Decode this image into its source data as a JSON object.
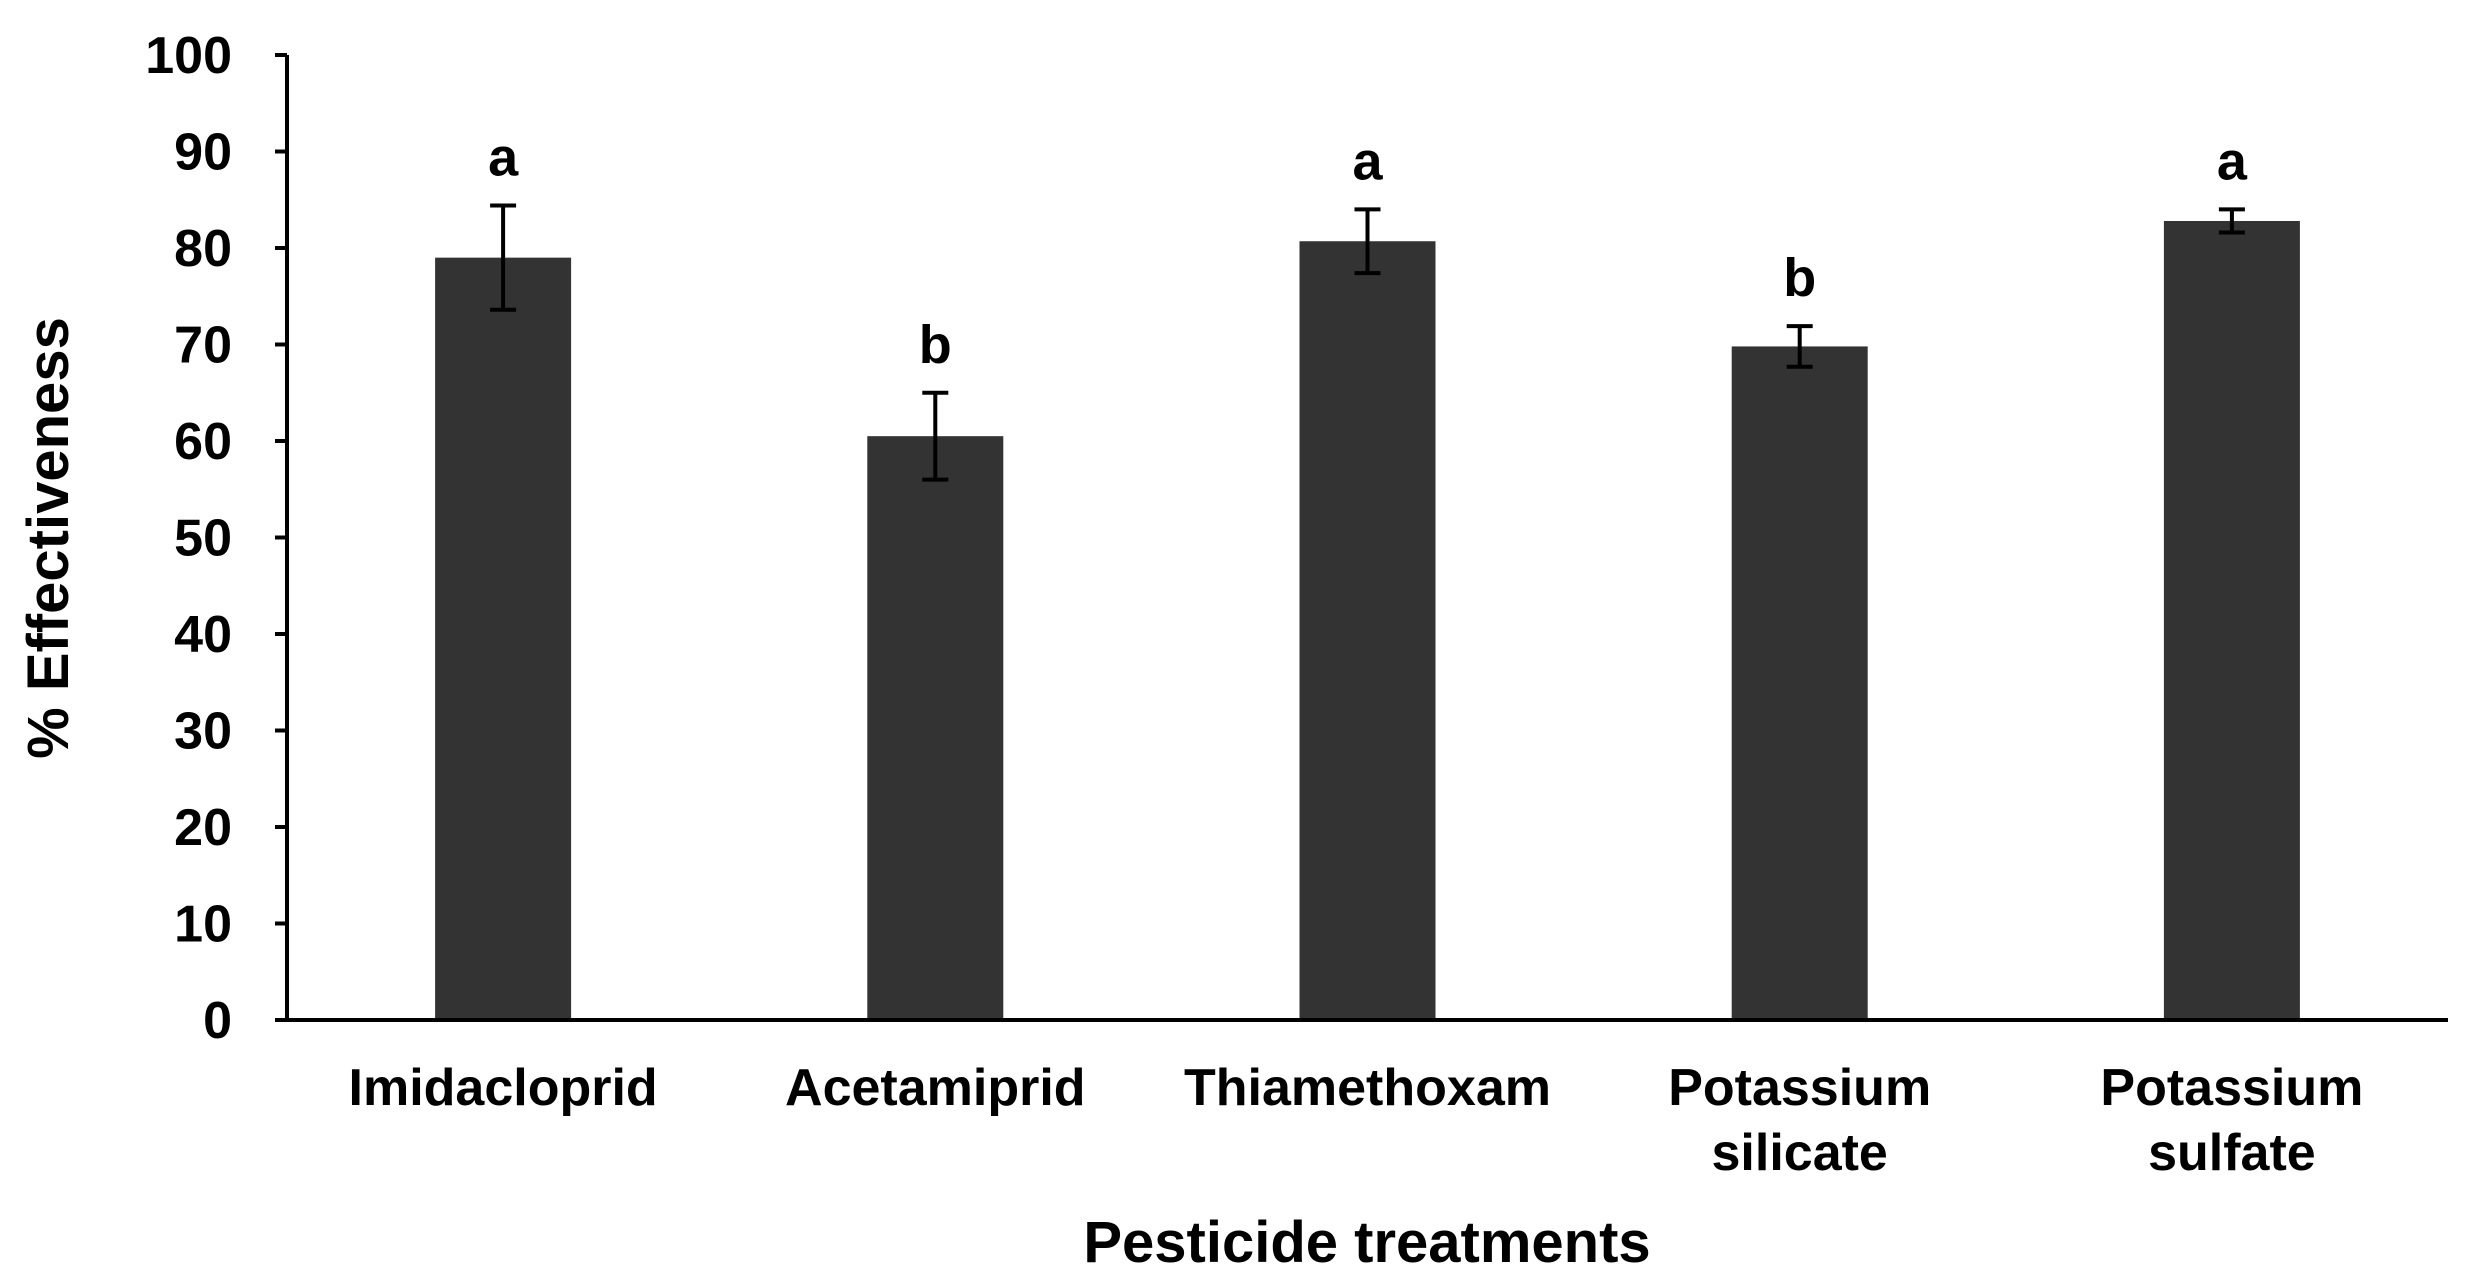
{
  "chart_data": {
    "type": "bar",
    "title": "",
    "xlabel": "Pesticide treatments",
    "ylabel": "% Effectiveness",
    "ylim": [
      0,
      100
    ],
    "yticks": [
      0,
      10,
      20,
      30,
      40,
      50,
      60,
      70,
      80,
      90,
      100
    ],
    "grid": false,
    "categories": [
      [
        "Imidacloprid"
      ],
      [
        "Acetamiprid"
      ],
      [
        "Thiamethoxam"
      ],
      [
        "Potassium",
        "silicate"
      ],
      [
        "Potassium",
        "sulfate"
      ]
    ],
    "values": [
      79,
      60.5,
      80.7,
      69.8,
      82.8
    ],
    "error": [
      5.4,
      4.5,
      3.3,
      2.1,
      1.2
    ],
    "significance": [
      "a",
      "b",
      "a",
      "b",
      "a"
    ],
    "bar_color": "#333333"
  }
}
